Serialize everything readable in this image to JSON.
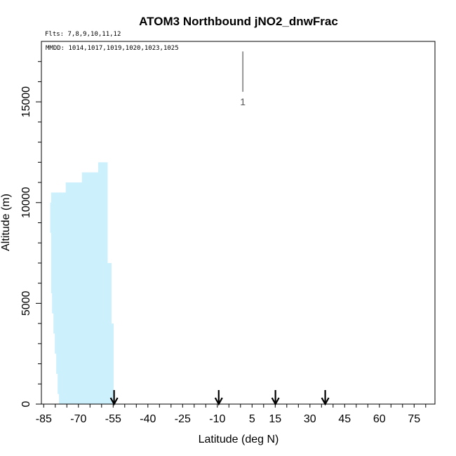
{
  "chart_data": {
    "type": "bar",
    "title": "ATOM3 Northbound jNO2_dnwFrac",
    "flights_note": "Flts: 7,8,9,10,11,12",
    "dates_note": "MMDD: 1014,1017,1019,1020,1023,1025",
    "xlabel": "Latitude (deg N)",
    "ylabel": "Altitude (m)",
    "xlim": [
      -86,
      84
    ],
    "ylim": [
      0,
      18000
    ],
    "x_ticks": [
      -85,
      -70,
      -55,
      -40,
      -25,
      -10,
      5,
      15,
      30,
      45,
      60,
      75
    ],
    "y_ticks": [
      0,
      5000,
      10000,
      15000
    ],
    "fill_color": "#cdf0fd",
    "data_coverage": [
      {
        "x0": -82.2,
        "x1": -81.8,
        "y0": 8500,
        "y1": 10000
      },
      {
        "x0": -81.8,
        "x1": -81.4,
        "y0": 5500,
        "y1": 10500
      },
      {
        "x0": -81.4,
        "x1": -80.8,
        "y0": 4500,
        "y1": 10500
      },
      {
        "x0": -80.8,
        "x1": -80.2,
        "y0": 3500,
        "y1": 10500
      },
      {
        "x0": -80.2,
        "x1": -79.6,
        "y0": 2500,
        "y1": 10500
      },
      {
        "x0": -79.6,
        "x1": -79.0,
        "y0": 1500,
        "y1": 10500
      },
      {
        "x0": -79.0,
        "x1": -78.4,
        "y0": 500,
        "y1": 10500
      },
      {
        "x0": -78.4,
        "x1": -75.5,
        "y0": 0,
        "y1": 10500
      },
      {
        "x0": -75.5,
        "x1": -68.5,
        "y0": 0,
        "y1": 11000
      },
      {
        "x0": -68.5,
        "x1": -61.5,
        "y0": 0,
        "y1": 11500
      },
      {
        "x0": -61.5,
        "x1": -57.5,
        "y0": 0,
        "y1": 12000
      },
      {
        "x0": -57.5,
        "x1": -55.8,
        "y0": 0,
        "y1": 7000
      },
      {
        "x0": -55.8,
        "x1": -54.9,
        "y0": 0,
        "y1": 4000
      }
    ],
    "markers": [
      -54.6,
      -9.4,
      15.1,
      36.6
    ],
    "scale_bar": {
      "x": 1,
      "y0": 15500,
      "y1": 17500,
      "label": "1"
    }
  }
}
